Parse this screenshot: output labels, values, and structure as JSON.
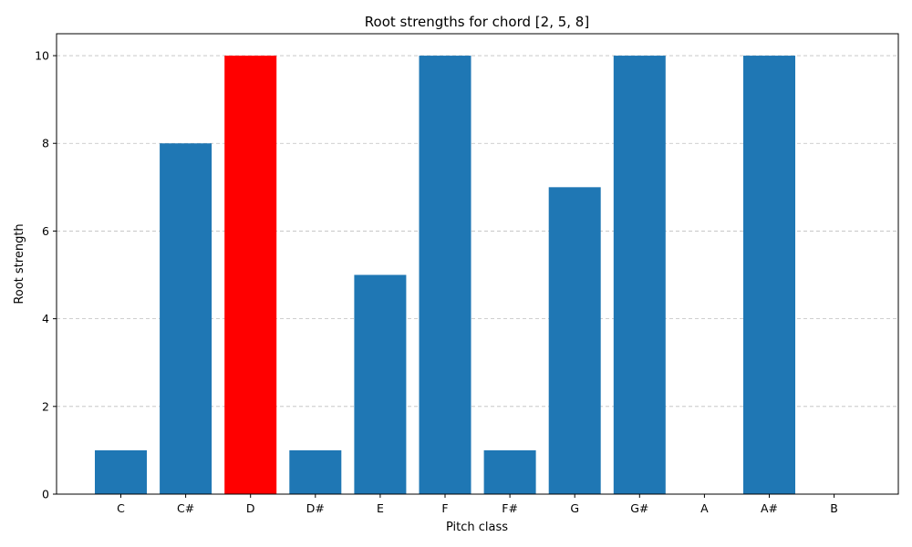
{
  "chart_data": {
    "type": "bar",
    "title": "Root strengths for chord [2, 5, 8]",
    "xlabel": "Pitch class",
    "ylabel": "Root strength",
    "categories": [
      "C",
      "C#",
      "D",
      "D#",
      "E",
      "F",
      "F#",
      "G",
      "G#",
      "A",
      "A#",
      "B"
    ],
    "values": [
      1,
      8,
      10,
      1,
      5,
      10,
      1,
      7,
      10,
      0,
      10,
      0
    ],
    "highlight_index": 2,
    "bar_color": "#1f77b4",
    "highlight_color": "#ff0000",
    "ylim": [
      0,
      10.5
    ],
    "yticks": [
      0,
      2,
      4,
      6,
      8,
      10
    ],
    "grid": "y-dashed",
    "legend": "none"
  }
}
